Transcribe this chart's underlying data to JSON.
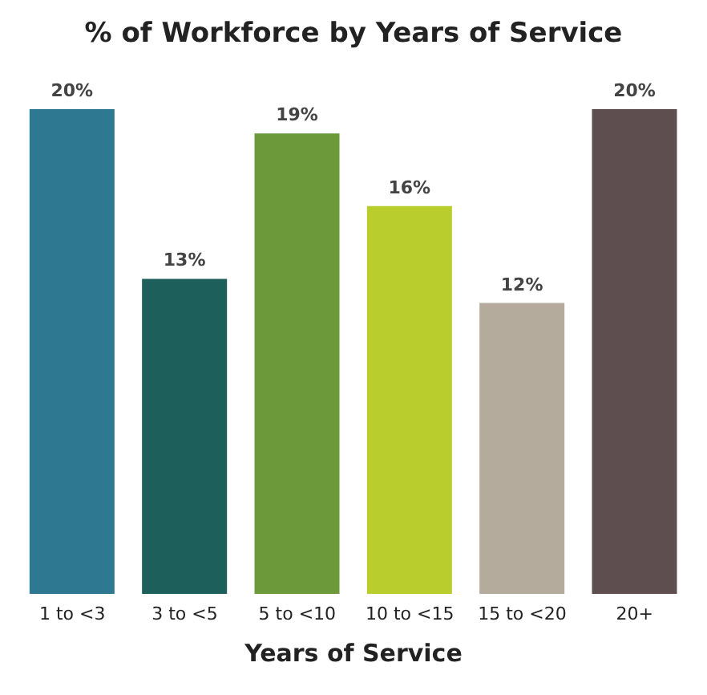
{
  "chart_data": {
    "type": "bar",
    "title": "% of Workforce by Years of Service",
    "xlabel": "Years of Service",
    "categories": [
      "1 to <3",
      "3 to <5",
      "5 to <10",
      "10 to <15",
      "15 to <20",
      "20+"
    ],
    "values": [
      20,
      13,
      19,
      16,
      12,
      20
    ],
    "value_labels": [
      "20%",
      "13%",
      "19%",
      "16%",
      "12%",
      "20%"
    ],
    "colors": [
      "#2f7891",
      "#1d5f5b",
      "#6c9a3b",
      "#b9cd2c",
      "#b5ab9c",
      "#5e4e50"
    ],
    "legend": false,
    "grid": false
  }
}
